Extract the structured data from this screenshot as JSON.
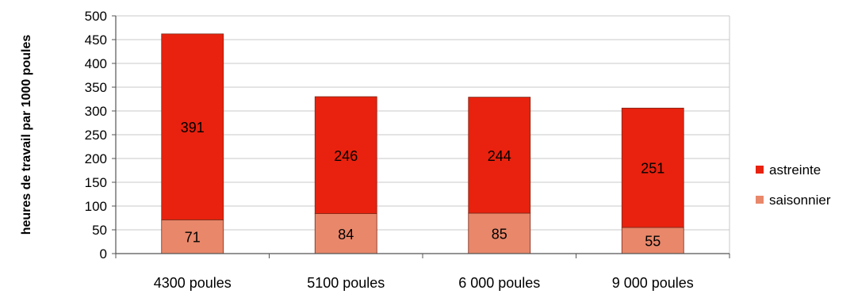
{
  "chart_data": {
    "type": "bar",
    "stacked": true,
    "categories": [
      "4300 poules",
      "5100 poules",
      "6 000 poules",
      "9 000 poules"
    ],
    "series": [
      {
        "name": "saisonnier",
        "values": [
          71,
          84,
          85,
          55
        ],
        "color": "#e8876a"
      },
      {
        "name": "astreinte",
        "values": [
          391,
          246,
          244,
          251
        ],
        "color": "#e8220e"
      }
    ],
    "ylabel": "heures de travail par 1000 poules",
    "ylim": [
      0,
      500
    ],
    "yticks": [
      0,
      50,
      100,
      150,
      200,
      250,
      300,
      350,
      400,
      450,
      500
    ],
    "grid": true,
    "legend_position": "right",
    "legend_order": [
      "astreinte",
      "saisonnier"
    ]
  }
}
